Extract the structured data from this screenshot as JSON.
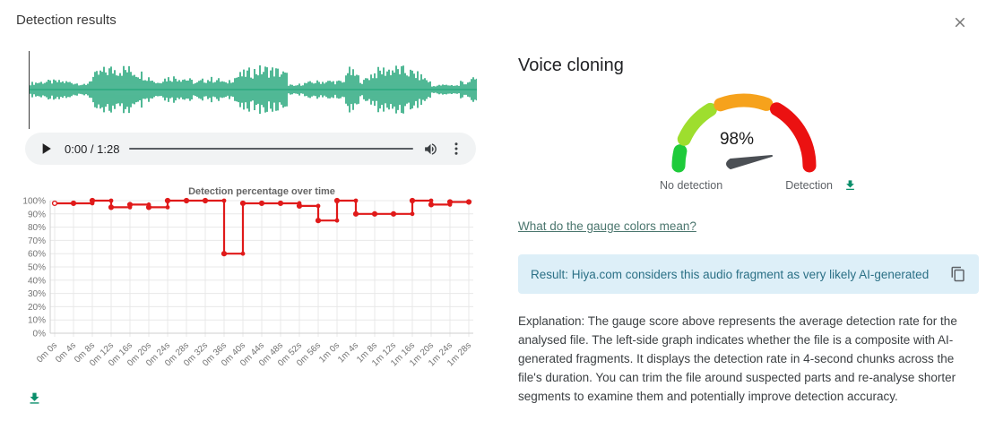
{
  "header": {
    "title": "Detection results"
  },
  "player": {
    "time": "0:00 / 1:28"
  },
  "waveform": {
    "color": "#17a172",
    "cursor_color": "#3a3a3a"
  },
  "chart_data": {
    "type": "line",
    "stepped": true,
    "title": "Detection percentage over time",
    "categories": [
      "0m 0s",
      "0m 4s",
      "0m 8s",
      "0m 12s",
      "0m 16s",
      "0m 20s",
      "0m 24s",
      "0m 28s",
      "0m 32s",
      "0m 36s",
      "0m 40s",
      "0m 44s",
      "0m 48s",
      "0m 52s",
      "0m 56s",
      "1m 0s",
      "1m 4s",
      "1m 8s",
      "1m 12s",
      "1m 16s",
      "1m 20s",
      "1m 24s",
      "1m 28s"
    ],
    "values": [
      98,
      98,
      100,
      95,
      97,
      95,
      100,
      100,
      100,
      60,
      98,
      98,
      98,
      96,
      85,
      100,
      90,
      90,
      90,
      100,
      97,
      99,
      99
    ],
    "yticks": [
      "100%",
      "90%",
      "80%",
      "70%",
      "60%",
      "50%",
      "40%",
      "30%",
      "20%",
      "10%",
      "0%"
    ],
    "ylim": [
      0,
      100
    ],
    "xlabel": "",
    "ylabel": "",
    "grid": true,
    "legend": "none",
    "line_color": "#e01a1a",
    "grid_color": "#e8e8e8",
    "axis_text_color": "#757575",
    "title_color": "#666666"
  },
  "panel": {
    "heading": "Voice cloning"
  },
  "gauge": {
    "value": 98,
    "value_label": "98%",
    "left_label": "No detection",
    "right_label": "Detection",
    "needle_color": "#4b4f54",
    "segments": [
      {
        "color": "#1ecb3a",
        "start": 180,
        "end": 167
      },
      {
        "color": "#9ede2e",
        "start": 156,
        "end": 121
      },
      {
        "color": "#f6a21c",
        "start": 111,
        "end": 70
      },
      {
        "color": "#eb1111",
        "start": 60,
        "end": 0
      }
    ]
  },
  "link": {
    "text": "What do the gauge colors mean?"
  },
  "result": {
    "text": "Result: Hiya.com considers this audio fragment as very likely AI-generated"
  },
  "explanation": {
    "text": "Explanation: The gauge score above represents the average detection rate for the analysed file. The left-side graph indicates whether the file is a composite with AI-generated fragments. It displays the detection rate in 4-second chunks across the file's duration. You can trim the file around suspected parts and re-analyse shorter segments to examine them and potentially improve detection accuracy."
  },
  "icons": {
    "download_color": "#0a8e6a",
    "copy_color": "#5f6368",
    "close_color": "#757575"
  }
}
